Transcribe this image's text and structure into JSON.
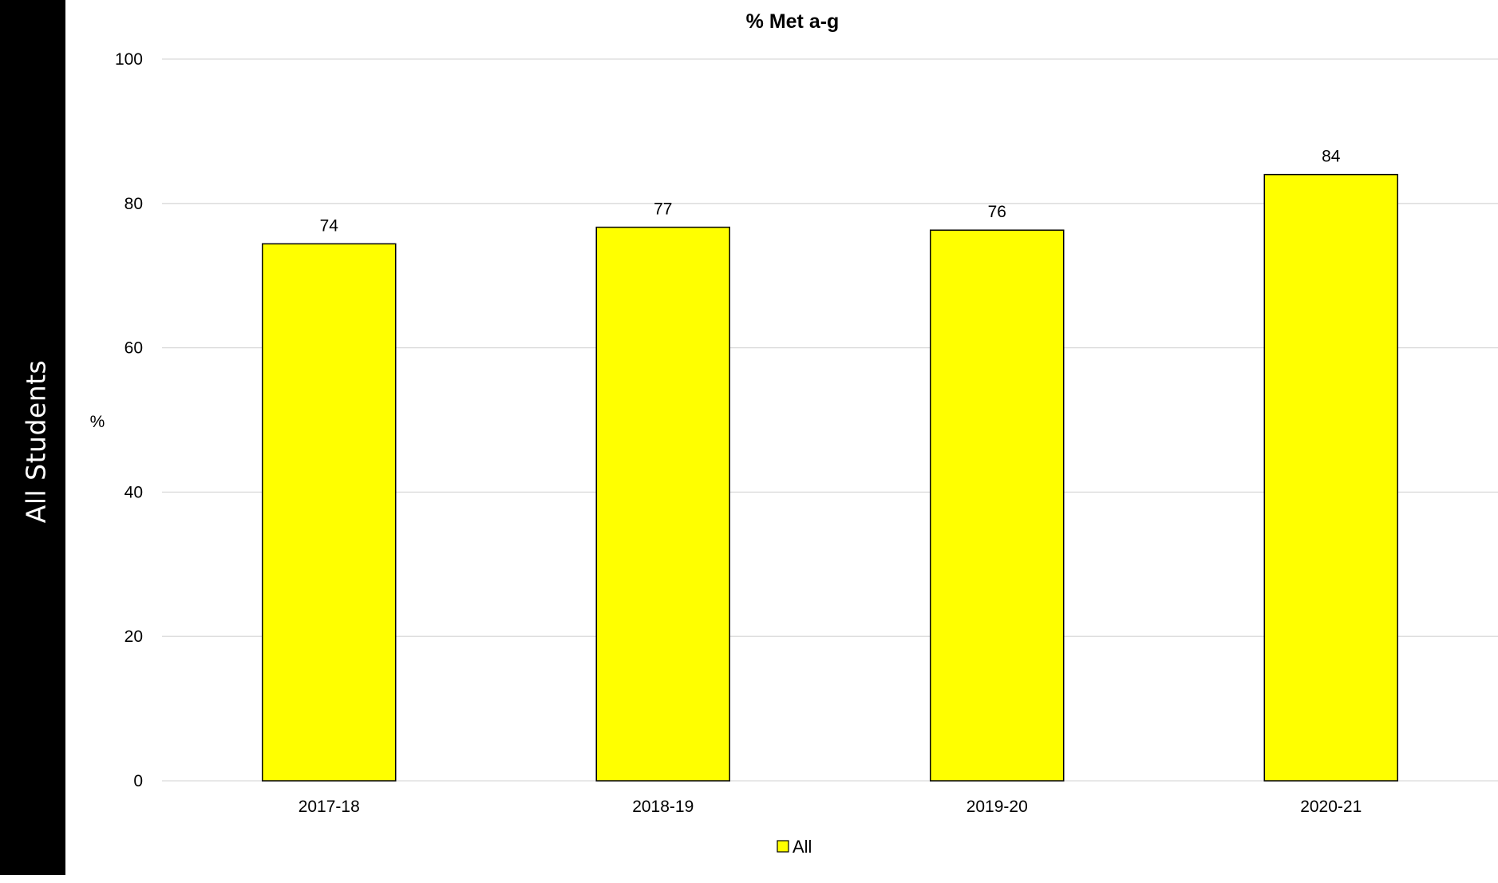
{
  "side_panel": {
    "label": "All Students"
  },
  "chart_data": {
    "type": "bar",
    "title": "% Met a-g",
    "xlabel": "",
    "ylabel": "%",
    "ylim": [
      0,
      100
    ],
    "yticks": [
      0,
      20,
      40,
      60,
      80,
      100
    ],
    "categories": [
      "2017-18",
      "2018-19",
      "2019-20",
      "2020-21"
    ],
    "series": [
      {
        "name": "All",
        "values": [
          74.4,
          76.7,
          76.3,
          84.0
        ],
        "labels": [
          "74",
          "77",
          "76",
          "84"
        ],
        "color": "#ffff00"
      }
    ],
    "grid": true,
    "legend": "bottom"
  }
}
